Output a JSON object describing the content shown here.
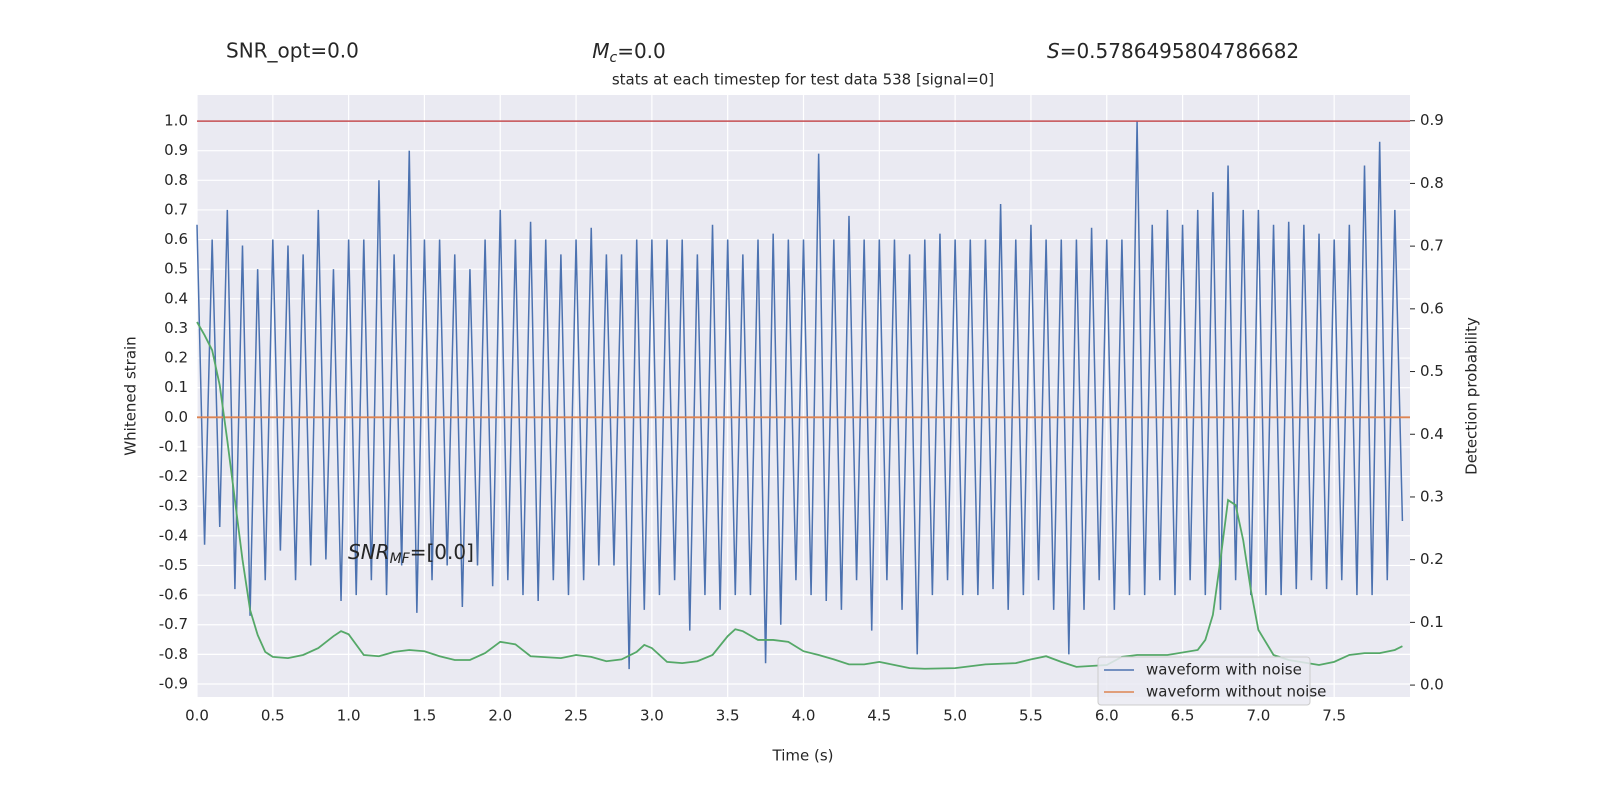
{
  "chart_data": {
    "type": "line",
    "title": "stats at each timestep for test data 538 [signal=0]",
    "annotations": [
      {
        "text": "SNR_opt=0.0"
      },
      {
        "base": "M",
        "sub": "c",
        "text": "=0.0"
      },
      {
        "base": "S",
        "text": "=0.5786495804786682"
      },
      {
        "base": "SNR",
        "sub": "MF",
        "text": "=[0.0]"
      }
    ],
    "xlabel": "Time (s)",
    "ylabel": "Whitened strain",
    "y2label": "Detection probability",
    "xlim": [
      0,
      8.0
    ],
    "ylim": [
      -0.944,
      1.088
    ],
    "y2lim": [
      -0.019,
      0.941
    ],
    "xticks": [
      {
        "value": 0,
        "label": "0.0"
      },
      0.5,
      {
        "value": 1,
        "label": "1.0"
      },
      1.5,
      {
        "value": 2,
        "label": "2.0"
      },
      2.5,
      {
        "value": 3,
        "label": "3.0"
      },
      3.5,
      {
        "value": 4,
        "label": "4.0"
      },
      4.5,
      {
        "value": 5,
        "label": "5.0"
      },
      5.5,
      {
        "value": 6,
        "label": "6.0"
      },
      6.5,
      {
        "value": 7,
        "label": "7.0"
      },
      7.5
    ],
    "yticks": [
      {
        "value": 1,
        "label": "1.0"
      },
      0.9,
      0.8,
      0.7,
      0.6,
      0.5,
      0.4,
      0.3,
      0.2,
      0.1,
      {
        "value": 0,
        "label": "0.0"
      },
      -0.1,
      -0.2,
      -0.3,
      -0.4,
      -0.5,
      -0.6,
      -0.7,
      -0.8,
      -0.9
    ],
    "y2ticks": [
      {
        "value": 0,
        "label": "0.0"
      },
      0.1,
      0.2,
      0.3,
      0.4,
      0.5,
      0.6,
      0.7,
      0.8,
      0.9
    ],
    "grid": true,
    "legend": "lower right",
    "hlines": [
      {
        "value": 1.0,
        "color": "#c44e52"
      }
    ],
    "series": [
      {
        "name": "waveform with noise",
        "color": "#4c72b0",
        "x": [
          0,
          0.05,
          0.1,
          0.15,
          0.2,
          0.25,
          0.3,
          0.35,
          0.4,
          0.45,
          0.5,
          0.55,
          0.6,
          0.65,
          0.7,
          0.75,
          0.8,
          0.85,
          0.9,
          0.95,
          1,
          1.05,
          1.1,
          1.15,
          1.2,
          1.25,
          1.3,
          1.35,
          1.4,
          1.45,
          1.5,
          1.55,
          1.6,
          1.65,
          1.7,
          1.75,
          1.8,
          1.85,
          1.9,
          1.95,
          2,
          2.05,
          2.1,
          2.15,
          2.2,
          2.25,
          2.3,
          2.35,
          2.4,
          2.45,
          2.5,
          2.55,
          2.6,
          2.65,
          2.7,
          2.75,
          2.8,
          2.85,
          2.9,
          2.95,
          3,
          3.05,
          3.1,
          3.15,
          3.2,
          3.25,
          3.3,
          3.35,
          3.4,
          3.45,
          3.5,
          3.55,
          3.6,
          3.65,
          3.7,
          3.75,
          3.8,
          3.85,
          3.9,
          3.95,
          4,
          4.05,
          4.1,
          4.15,
          4.2,
          4.25,
          4.3,
          4.35,
          4.4,
          4.45,
          4.5,
          4.55,
          4.6,
          4.65,
          4.7,
          4.75,
          4.8,
          4.85,
          4.9,
          4.95,
          5,
          5.05,
          5.1,
          5.15,
          5.2,
          5.25,
          5.3,
          5.35,
          5.4,
          5.45,
          5.5,
          5.55,
          5.6,
          5.65,
          5.7,
          5.75,
          5.8,
          5.85,
          5.9,
          5.95,
          6,
          6.05,
          6.1,
          6.15,
          6.2,
          6.25,
          6.3,
          6.35,
          6.4,
          6.45,
          6.5,
          6.55,
          6.6,
          6.65,
          6.7,
          6.75,
          6.8,
          6.85,
          6.9,
          6.95,
          7,
          7.05,
          7.1,
          7.15,
          7.2,
          7.25,
          7.3,
          7.35,
          7.4,
          7.45,
          7.5,
          7.55,
          7.6,
          7.65,
          7.7,
          7.75,
          7.8,
          7.85,
          7.9,
          7.95
        ],
        "values": [
          0.65,
          -0.43,
          0.6,
          -0.37,
          0.7,
          -0.58,
          0.58,
          -0.67,
          0.5,
          -0.55,
          0.6,
          -0.45,
          0.58,
          -0.55,
          0.55,
          -0.5,
          0.7,
          -0.48,
          0.5,
          -0.62,
          0.6,
          -0.6,
          0.6,
          -0.55,
          0.8,
          -0.6,
          0.55,
          -0.5,
          0.9,
          -0.66,
          0.6,
          -0.55,
          0.6,
          -0.5,
          0.55,
          -0.64,
          0.5,
          -0.5,
          0.6,
          -0.57,
          0.7,
          -0.55,
          0.6,
          -0.6,
          0.66,
          -0.62,
          0.6,
          -0.55,
          0.55,
          -0.6,
          0.6,
          -0.55,
          0.64,
          -0.5,
          0.55,
          -0.5,
          0.55,
          -0.85,
          0.6,
          -0.65,
          0.6,
          -0.6,
          0.6,
          -0.55,
          0.6,
          -0.72,
          0.55,
          -0.6,
          0.65,
          -0.65,
          0.6,
          -0.6,
          0.55,
          -0.6,
          0.6,
          -0.83,
          0.62,
          -0.7,
          0.6,
          -0.55,
          0.6,
          -0.6,
          0.89,
          -0.62,
          0.6,
          -0.65,
          0.68,
          -0.55,
          0.6,
          -0.72,
          0.6,
          -0.55,
          0.6,
          -0.65,
          0.55,
          -0.8,
          0.6,
          -0.6,
          0.62,
          -0.55,
          0.6,
          -0.6,
          0.6,
          -0.6,
          0.6,
          -0.58,
          0.72,
          -0.65,
          0.6,
          -0.6,
          0.65,
          -0.55,
          0.6,
          -0.65,
          0.6,
          -0.8,
          0.6,
          -0.65,
          0.64,
          -0.55,
          0.6,
          -0.65,
          0.6,
          -0.6,
          1.0,
          -0.6,
          0.65,
          -0.55,
          0.7,
          -0.6,
          0.65,
          -0.55,
          0.7,
          -0.6,
          0.76,
          -0.65,
          0.85,
          -0.55,
          0.7,
          -0.6,
          0.7,
          -0.6,
          0.65,
          -0.6,
          0.66,
          -0.58,
          0.65,
          -0.55,
          0.62,
          -0.58,
          0.6,
          -0.55,
          0.65,
          -0.6,
          0.85,
          -0.6,
          0.93,
          -0.55,
          0.7,
          -0.35
        ]
      },
      {
        "name": "waveform without noise",
        "color": "#dd8452",
        "x": [
          0,
          8.0
        ],
        "values": [
          0,
          0
        ]
      },
      {
        "color": "#55a868",
        "axis": "y2",
        "x": [
          0,
          0.05,
          0.1,
          0.15,
          0.2,
          0.25,
          0.3,
          0.35,
          0.4,
          0.45,
          0.5,
          0.6,
          0.7,
          0.8,
          0.9,
          0.95,
          1.0,
          1.1,
          1.2,
          1.3,
          1.4,
          1.5,
          1.6,
          1.7,
          1.8,
          1.9,
          2.0,
          2.1,
          2.2,
          2.4,
          2.5,
          2.6,
          2.7,
          2.8,
          2.9,
          2.95,
          3.0,
          3.1,
          3.2,
          3.3,
          3.4,
          3.5,
          3.55,
          3.6,
          3.7,
          3.8,
          3.9,
          4.0,
          4.1,
          4.2,
          4.3,
          4.4,
          4.5,
          4.6,
          4.7,
          4.8,
          5.0,
          5.1,
          5.2,
          5.4,
          5.5,
          5.6,
          5.7,
          5.8,
          6.0,
          6.1,
          6.2,
          6.4,
          6.6,
          6.65,
          6.7,
          6.75,
          6.8,
          6.85,
          6.9,
          6.95,
          7.0,
          7.1,
          7.2,
          7.4,
          7.5,
          7.6,
          7.7,
          7.8,
          7.9,
          7.95
        ],
        "values": [
          0.579,
          0.558,
          0.534,
          0.478,
          0.39,
          0.295,
          0.2,
          0.12,
          0.08,
          0.053,
          0.045,
          0.043,
          0.048,
          0.059,
          0.078,
          0.086,
          0.081,
          0.048,
          0.046,
          0.053,
          0.056,
          0.054,
          0.046,
          0.04,
          0.04,
          0.051,
          0.069,
          0.065,
          0.046,
          0.043,
          0.048,
          0.045,
          0.038,
          0.041,
          0.053,
          0.064,
          0.059,
          0.037,
          0.035,
          0.038,
          0.048,
          0.078,
          0.089,
          0.086,
          0.072,
          0.072,
          0.069,
          0.054,
          0.048,
          0.041,
          0.033,
          0.033,
          0.037,
          0.032,
          0.027,
          0.026,
          0.027,
          0.03,
          0.033,
          0.035,
          0.041,
          0.046,
          0.037,
          0.029,
          0.032,
          0.045,
          0.048,
          0.048,
          0.056,
          0.072,
          0.112,
          0.2,
          0.295,
          0.287,
          0.231,
          0.152,
          0.088,
          0.048,
          0.04,
          0.032,
          0.037,
          0.048,
          0.051,
          0.051,
          0.056,
          0.062
        ]
      }
    ]
  }
}
